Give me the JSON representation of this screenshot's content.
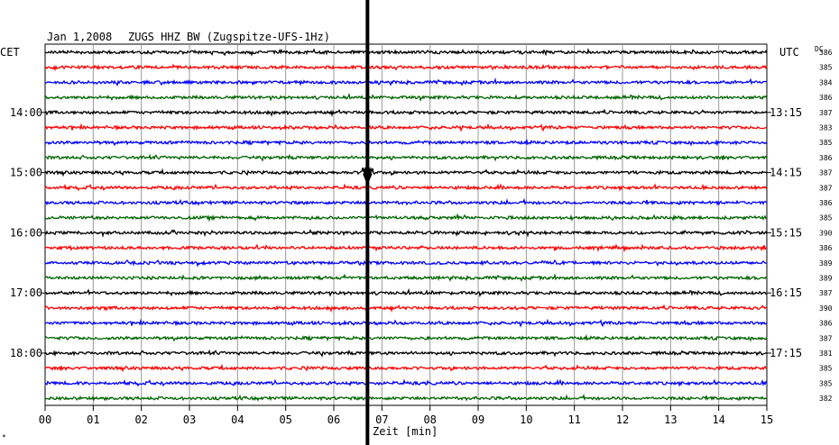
{
  "header": {
    "date": "Jan 1,2008",
    "station": "ZUGS HHZ BW (Zugspitze-UFS-1Hz)"
  },
  "left_label": "CET",
  "right_label": "UTC",
  "dc_label": "DC",
  "corner_mark": "*",
  "chart_data": {
    "type": "line",
    "xlabel": "Zeit [min]",
    "xlim": [
      0,
      15
    ],
    "x_ticks": [
      "00",
      "01",
      "02",
      "03",
      "04",
      "05",
      "06",
      "07",
      "08",
      "09",
      "10",
      "11",
      "12",
      "13",
      "14",
      "15"
    ],
    "trace_colors": [
      "#000000",
      "#ff0000",
      "#0000ff",
      "#006400"
    ],
    "left_hour_labels": [
      {
        "trace": 4,
        "label": "14:00"
      },
      {
        "trace": 8,
        "label": "15:00"
      },
      {
        "trace": 12,
        "label": "16:00"
      },
      {
        "trace": 16,
        "label": "17:00"
      },
      {
        "trace": 20,
        "label": "18:00"
      }
    ],
    "right_hour_labels": [
      {
        "trace": 4,
        "label": "13:15"
      },
      {
        "trace": 8,
        "label": "14:15"
      },
      {
        "trace": 12,
        "label": "15:15"
      },
      {
        "trace": 16,
        "label": "16:15"
      },
      {
        "trace": 20,
        "label": "17:15"
      }
    ],
    "dc_values": [
      "386",
      "385",
      "384",
      "386",
      "387",
      "383",
      "385",
      "386",
      "387",
      "387",
      "386",
      "385",
      "390",
      "386",
      "389",
      "389",
      "387",
      "390",
      "386",
      "387",
      "381",
      "385",
      "385",
      "382"
    ],
    "event_minute": 6.7
  }
}
